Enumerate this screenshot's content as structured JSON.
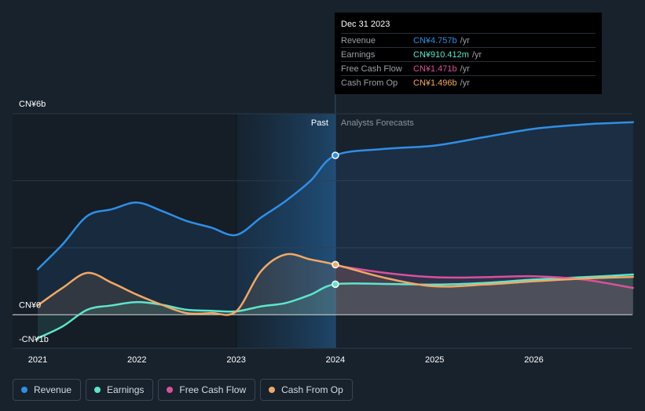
{
  "chart_data": {
    "type": "line",
    "title": "",
    "xlabel": "",
    "ylabel": "",
    "ylim": [
      -1,
      6
    ],
    "y_axis_labels": [
      {
        "value": 6,
        "text": "CN¥6b"
      },
      {
        "value": 0,
        "text": "CN¥0"
      },
      {
        "value": -1,
        "text": "-CN¥1b"
      }
    ],
    "x_ticks": [
      {
        "value": 2021,
        "text": "2021"
      },
      {
        "value": 2022,
        "text": "2022"
      },
      {
        "value": 2023,
        "text": "2023"
      },
      {
        "value": 2024,
        "text": "2024"
      },
      {
        "value": 2025,
        "text": "2025"
      },
      {
        "value": 2026,
        "text": "2026"
      }
    ],
    "past_label": "Past",
    "forecast_label": "Analysts Forecasts",
    "divider_x": 2024,
    "series": [
      {
        "name": "Revenue",
        "color": "#2f8fe6",
        "points": [
          [
            2021.0,
            1.36
          ],
          [
            2021.25,
            2.1
          ],
          [
            2021.5,
            2.95
          ],
          [
            2021.75,
            3.15
          ],
          [
            2022.0,
            3.35
          ],
          [
            2022.25,
            3.1
          ],
          [
            2022.5,
            2.8
          ],
          [
            2022.75,
            2.6
          ],
          [
            2023.0,
            2.38
          ],
          [
            2023.25,
            2.9
          ],
          [
            2023.5,
            3.4
          ],
          [
            2023.75,
            4.0
          ],
          [
            2024.0,
            4.757
          ],
          [
            2024.5,
            4.95
          ],
          [
            2025.0,
            5.05
          ],
          [
            2025.5,
            5.3
          ],
          [
            2026.0,
            5.55
          ],
          [
            2026.5,
            5.68
          ],
          [
            2027.0,
            5.75
          ]
        ]
      },
      {
        "name": "Earnings",
        "color": "#5ee5cb",
        "points": [
          [
            2021.0,
            -0.7
          ],
          [
            2021.25,
            -0.35
          ],
          [
            2021.5,
            0.15
          ],
          [
            2021.75,
            0.28
          ],
          [
            2022.0,
            0.38
          ],
          [
            2022.25,
            0.3
          ],
          [
            2022.5,
            0.15
          ],
          [
            2022.75,
            0.12
          ],
          [
            2023.0,
            0.1
          ],
          [
            2023.25,
            0.25
          ],
          [
            2023.5,
            0.35
          ],
          [
            2023.75,
            0.6
          ],
          [
            2024.0,
            0.91
          ],
          [
            2024.5,
            0.92
          ],
          [
            2025.0,
            0.9
          ],
          [
            2025.5,
            0.95
          ],
          [
            2026.0,
            1.05
          ],
          [
            2026.5,
            1.12
          ],
          [
            2027.0,
            1.2
          ]
        ]
      },
      {
        "name": "Free Cash Flow",
        "color": "#d9519a",
        "points": [
          [
            2024.0,
            1.471
          ],
          [
            2024.5,
            1.25
          ],
          [
            2025.0,
            1.12
          ],
          [
            2025.5,
            1.12
          ],
          [
            2026.0,
            1.15
          ],
          [
            2026.5,
            1.05
          ],
          [
            2027.0,
            0.8
          ]
        ]
      },
      {
        "name": "Cash From Op",
        "color": "#f0a866",
        "points": [
          [
            2021.0,
            0.28
          ],
          [
            2021.25,
            0.8
          ],
          [
            2021.5,
            1.25
          ],
          [
            2021.75,
            0.95
          ],
          [
            2022.0,
            0.6
          ],
          [
            2022.25,
            0.3
          ],
          [
            2022.5,
            0.05
          ],
          [
            2022.75,
            0.05
          ],
          [
            2023.0,
            0.1
          ],
          [
            2023.25,
            1.3
          ],
          [
            2023.5,
            1.8
          ],
          [
            2023.75,
            1.65
          ],
          [
            2024.0,
            1.496
          ],
          [
            2024.5,
            1.1
          ],
          [
            2025.0,
            0.85
          ],
          [
            2025.5,
            0.9
          ],
          [
            2026.0,
            1.0
          ],
          [
            2026.5,
            1.08
          ],
          [
            2027.0,
            1.13
          ]
        ]
      }
    ],
    "legend_position": "bottom-left"
  },
  "tooltip": {
    "date": "Dec 31 2023",
    "rows": [
      {
        "label": "Revenue",
        "value": "CN¥4.757b",
        "unit": "/yr",
        "color": "#2f8fe6"
      },
      {
        "label": "Earnings",
        "value": "CN¥910.412m",
        "unit": "/yr",
        "color": "#5ee5cb"
      },
      {
        "label": "Free Cash Flow",
        "value": "CN¥1.471b",
        "unit": "/yr",
        "color": "#d9519a"
      },
      {
        "label": "Cash From Op",
        "value": "CN¥1.496b",
        "unit": "/yr",
        "color": "#f0a866"
      }
    ]
  },
  "legend": [
    {
      "label": "Revenue",
      "color": "#2f8fe6"
    },
    {
      "label": "Earnings",
      "color": "#5ee5cb"
    },
    {
      "label": "Free Cash Flow",
      "color": "#d9519a"
    },
    {
      "label": "Cash From Op",
      "color": "#f0a866"
    }
  ]
}
